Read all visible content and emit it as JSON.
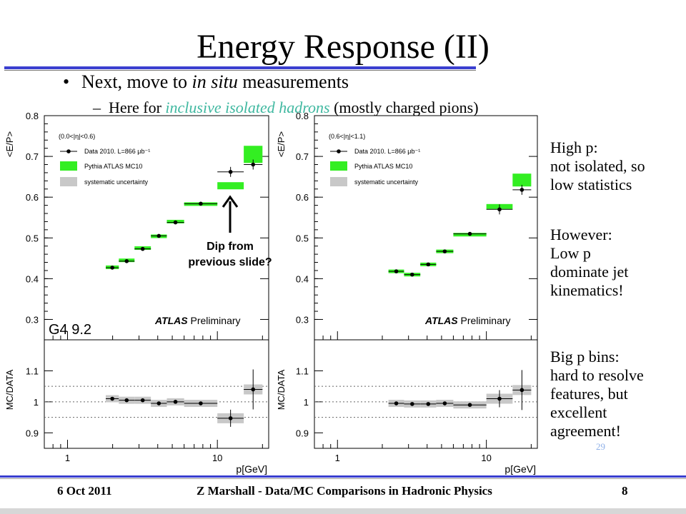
{
  "slide": {
    "title": "Energy Response (II)",
    "bullet": "Next, move to ",
    "bullet_em": "in situ",
    "bullet_rest": " measurements",
    "sub_dash": "–",
    "sub_pre": "Here for ",
    "sub_hl": "inclusive isolated hadrons",
    "sub_post": " (mostly charged pions)",
    "note_high": "High p:\nnot isolated, so\nlow statistics",
    "note_however": "However:\nLow p\ndominate jet\nkinematics!",
    "note_big": "Big p bins:\nhard to resolve\nfeatures, but\nexcellent\nagreement!",
    "corner_page": "29",
    "footer_date": "6 Oct 2011",
    "footer_center": "Z Marshall - Data/MC Comparisons in Hadronic Physics",
    "footer_page": "8"
  },
  "colors": {
    "mc": "#33ee22",
    "syst": "#c8c8c8",
    "rule": "#3a3fd0",
    "highlight": "#3fb8a0"
  },
  "chart_data": [
    {
      "type": "scatter",
      "ylabel": "<E/P>",
      "ratio_ylabel": "MC/DATA",
      "xlabel": "p[GeV]",
      "xscale": "log",
      "xlim": [
        0.7,
        22
      ],
      "ylim": [
        0.25,
        0.8
      ],
      "ratio_ylim": [
        0.85,
        1.2
      ],
      "yticks": [
        "0.3",
        "0.4",
        "0.5",
        "0.6",
        "0.7",
        "0.8"
      ],
      "ratio_yticks": [
        "0.9",
        "1",
        "1.1"
      ],
      "xticks": [
        "1",
        "10"
      ],
      "eta_range": "(0.0<|η|<0.6)",
      "legend": {
        "data": "Data 2010. L=866 μb⁻¹",
        "mc": "Pythia ATLAS MC10",
        "syst": "systematic uncertainty"
      },
      "atlas_bold": "ATLAS",
      "atlas_rest": " Preliminary",
      "g4_label": "G4 9.2",
      "annotation": "Dip from\nprevious slide?",
      "bins": [
        {
          "lo": 1.8,
          "hi": 2.2,
          "data": 0.427,
          "mc": 0.428
        },
        {
          "lo": 2.2,
          "hi": 2.8,
          "data": 0.443,
          "mc": 0.445
        },
        {
          "lo": 2.8,
          "hi": 3.6,
          "data": 0.473,
          "mc": 0.475
        },
        {
          "lo": 3.6,
          "hi": 4.6,
          "data": 0.505,
          "mc": 0.504
        },
        {
          "lo": 4.6,
          "hi": 6.0,
          "data": 0.538,
          "mc": 0.54
        },
        {
          "lo": 6.0,
          "hi": 10.0,
          "data": 0.584,
          "mc": 0.583
        },
        {
          "lo": 10.0,
          "hi": 15.0,
          "data": 0.662,
          "mc": 0.628
        },
        {
          "lo": 15.0,
          "hi": 20.0,
          "data": 0.68,
          "mc": 0.705
        }
      ],
      "ratio": [
        1.01,
        1.005,
        1.005,
        0.995,
        1.0,
        0.995,
        0.947,
        1.04
      ]
    },
    {
      "type": "scatter",
      "ylabel": "<E/P>",
      "ratio_ylabel": "MC/DATA",
      "xlabel": "p[GeV]",
      "xscale": "log",
      "xlim": [
        0.7,
        22
      ],
      "ylim": [
        0.25,
        0.8
      ],
      "ratio_ylim": [
        0.85,
        1.2
      ],
      "yticks": [
        "0.3",
        "0.4",
        "0.5",
        "0.6",
        "0.7",
        "0.8"
      ],
      "ratio_yticks": [
        "0.9",
        "1",
        "1.1"
      ],
      "xticks": [
        "1",
        "10"
      ],
      "eta_range": "(0.6<|η|<1.1)",
      "legend": {
        "data": "Data 2010. L=866 μb⁻¹",
        "mc": "Pythia ATLAS MC10",
        "syst": "systematic uncertainty"
      },
      "atlas_bold": "ATLAS",
      "atlas_rest": " Preliminary",
      "bins": [
        {
          "lo": 2.2,
          "hi": 2.8,
          "data": 0.418,
          "mc": 0.418
        },
        {
          "lo": 2.8,
          "hi": 3.6,
          "data": 0.41,
          "mc": 0.41
        },
        {
          "lo": 3.6,
          "hi": 4.6,
          "data": 0.435,
          "mc": 0.435
        },
        {
          "lo": 4.6,
          "hi": 6.0,
          "data": 0.467,
          "mc": 0.467
        },
        {
          "lo": 6.0,
          "hi": 10.0,
          "data": 0.51,
          "mc": 0.508
        },
        {
          "lo": 10.0,
          "hi": 15.0,
          "data": 0.57,
          "mc": 0.577
        },
        {
          "lo": 15.0,
          "hi": 20.0,
          "data": 0.618,
          "mc": 0.642
        }
      ],
      "ratio": [
        0.995,
        0.993,
        0.993,
        0.995,
        0.99,
        1.01,
        1.038
      ]
    }
  ]
}
